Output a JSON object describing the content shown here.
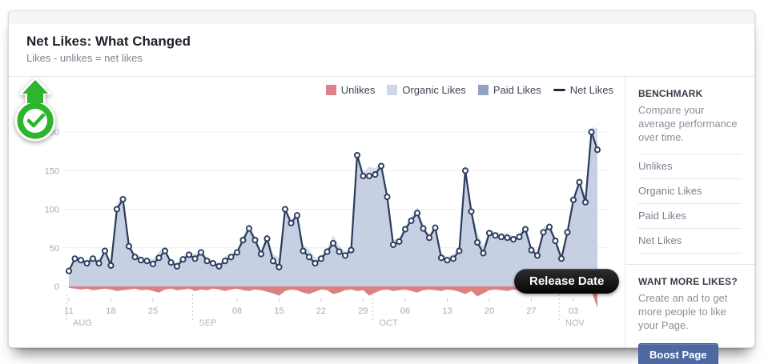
{
  "header": {
    "title": "Net Likes: What Changed",
    "subtitle": "Likes - unlikes = net likes"
  },
  "legend": [
    {
      "key": "unlikes",
      "label": "Unlikes",
      "swatch": "square",
      "color": "#df8287"
    },
    {
      "key": "organic-likes",
      "label": "Organic Likes",
      "swatch": "square",
      "color": "#cfd8e7"
    },
    {
      "key": "paid-likes",
      "label": "Paid Likes",
      "swatch": "square",
      "color": "#93a2c3"
    },
    {
      "key": "net-likes",
      "label": "Net Likes",
      "swatch": "line",
      "color": "#1c2b49"
    }
  ],
  "chart_data": {
    "type": "area",
    "title": "Net Likes: What Changed",
    "x_unit": "day",
    "x_start_label": "AUG 11",
    "ylim": [
      0,
      200
    ],
    "yticks": [
      0,
      50,
      100,
      150,
      200
    ],
    "grid": true,
    "legend_position": "top-right",
    "x_week_ticks": [
      {
        "day": 0,
        "label": "11"
      },
      {
        "day": 7,
        "label": "18"
      },
      {
        "day": 14,
        "label": "25"
      },
      {
        "day": 28,
        "label": "08"
      },
      {
        "day": 35,
        "label": "15"
      },
      {
        "day": 42,
        "label": "22"
      },
      {
        "day": 49,
        "label": "29"
      },
      {
        "day": 56,
        "label": "06"
      },
      {
        "day": 63,
        "label": "13"
      },
      {
        "day": 70,
        "label": "20"
      },
      {
        "day": 77,
        "label": "27"
      },
      {
        "day": 84,
        "label": "03"
      }
    ],
    "x_month_dividers": [
      {
        "day": 0,
        "label": "AUG"
      },
      {
        "day": 21,
        "label": "SEP"
      },
      {
        "day": 51,
        "label": "OCT"
      },
      {
        "day": 82,
        "label": "NOV"
      }
    ],
    "series": [
      {
        "name": "Net Likes",
        "type": "line",
        "color": "#2b3c5e",
        "values": [
          20,
          36,
          34,
          30,
          36,
          30,
          46,
          27,
          100,
          113,
          52,
          38,
          34,
          33,
          29,
          37,
          46,
          31,
          26,
          35,
          41,
          36,
          44,
          33,
          30,
          26,
          33,
          38,
          44,
          60,
          75,
          60,
          42,
          62,
          33,
          25,
          100,
          82,
          92,
          46,
          38,
          30,
          36,
          45,
          56,
          45,
          40,
          47,
          170,
          143,
          143,
          145,
          156,
          116,
          54,
          58,
          74,
          85,
          95,
          75,
          63,
          76,
          37,
          34,
          36,
          46,
          150,
          97,
          57,
          43,
          69,
          66,
          64,
          63,
          61,
          64,
          74,
          47,
          40,
          70,
          77,
          59,
          36,
          70,
          112,
          135,
          109,
          200,
          177
        ]
      },
      {
        "name": "Unlikes",
        "type": "area",
        "color": "#dc8181",
        "values": [
          -2,
          -3,
          -4,
          -3,
          -5,
          -4,
          -3,
          -4,
          -6,
          -5,
          -4,
          -3,
          -5,
          -4,
          -6,
          -8,
          -4,
          -3,
          -5,
          -4,
          -3,
          -6,
          -4,
          -5,
          -3,
          -4,
          -6,
          -4,
          -3,
          -5,
          -6,
          -4,
          -5,
          -7,
          -9,
          -12,
          -6,
          -4,
          -5,
          -8,
          -10,
          -7,
          -4,
          -5,
          -10,
          -8,
          -5,
          -4,
          -6,
          -5,
          -12,
          -8,
          -5,
          -4,
          -6,
          -5,
          -4,
          -6,
          -8,
          -5,
          -4,
          -5,
          -6,
          -4,
          -5,
          -7,
          -10,
          -6,
          -13,
          -9,
          -5,
          -4,
          -5,
          -6,
          -4,
          -5,
          -6,
          -4,
          -5,
          -6,
          -5,
          -4,
          -6,
          -5,
          -4,
          -5,
          -8,
          -6,
          -28
        ]
      }
    ],
    "organic_area_rule": "net_likes + abs(unlikes)",
    "organic_area_color": "#d6ddea",
    "net_area_color": "#c7d0e2",
    "annotation": {
      "label": "Release Date",
      "day": 72
    }
  },
  "tooltip": {
    "label": "Release Date"
  },
  "sidebar": {
    "benchmark": {
      "title": "BENCHMARK",
      "description": "Compare your average performance over time.",
      "items": [
        {
          "key": "unlikes",
          "label": "Unlikes"
        },
        {
          "key": "organic-likes",
          "label": "Organic Likes"
        },
        {
          "key": "paid-likes",
          "label": "Paid Likes"
        },
        {
          "key": "net-likes",
          "label": "Net Likes"
        }
      ]
    },
    "want_more": {
      "title": "WANT MORE LIKES?",
      "description": "Create an ad to get more people to like your Page.",
      "button_label": "Boost Page"
    }
  },
  "colors": {
    "accent_blue": "#4e69a2",
    "net_line": "#2b3c5e",
    "unlikes_red": "#dc8181",
    "pin_green": "#2db52d",
    "tooltip_bg": "#111111",
    "axis_text": "#a6abb5",
    "grid_line": "#ebecee"
  }
}
